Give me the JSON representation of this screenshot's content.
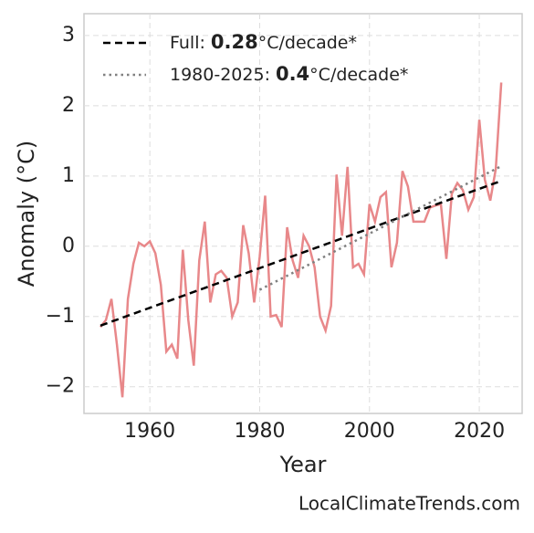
{
  "chart_data": {
    "type": "line",
    "xlabel": "Year",
    "ylabel": "Anomaly (°C)",
    "source": "LocalClimateTrends.com",
    "x": [
      1951,
      1952,
      1953,
      1954,
      1955,
      1956,
      1957,
      1958,
      1959,
      1960,
      1961,
      1962,
      1963,
      1964,
      1965,
      1966,
      1967,
      1968,
      1969,
      1970,
      1971,
      1972,
      1973,
      1974,
      1975,
      1976,
      1977,
      1978,
      1979,
      1980,
      1981,
      1982,
      1983,
      1984,
      1985,
      1986,
      1987,
      1988,
      1989,
      1990,
      1991,
      1992,
      1993,
      1994,
      1995,
      1996,
      1997,
      1998,
      1999,
      2000,
      2001,
      2002,
      2003,
      2004,
      2005,
      2006,
      2007,
      2008,
      2009,
      2010,
      2011,
      2012,
      2013,
      2014,
      2015,
      2016,
      2017,
      2018,
      2019,
      2020,
      2021,
      2022,
      2023,
      2024
    ],
    "values": [
      -1.15,
      -1.05,
      -0.75,
      -1.4,
      -2.15,
      -0.75,
      -0.25,
      0.05,
      0.0,
      0.07,
      -0.1,
      -0.55,
      -1.5,
      -1.4,
      -1.6,
      -0.05,
      -1.05,
      -1.7,
      -0.2,
      0.35,
      -0.8,
      -0.4,
      -0.35,
      -0.45,
      -1.0,
      -0.8,
      0.3,
      -0.1,
      -0.8,
      -0.15,
      0.72,
      -1.0,
      -0.98,
      -1.15,
      0.27,
      -0.2,
      -0.45,
      0.15,
      0.0,
      -0.3,
      -1.0,
      -1.2,
      -0.85,
      1.02,
      0.15,
      1.13,
      -0.3,
      -0.25,
      -0.4,
      0.6,
      0.35,
      0.7,
      0.77,
      -0.3,
      0.05,
      1.07,
      0.85,
      0.35,
      0.35,
      0.35,
      0.55,
      0.58,
      0.6,
      -0.18,
      0.75,
      0.9,
      0.8,
      0.52,
      0.7,
      1.8,
      0.95,
      0.65,
      1.1,
      2.33
    ],
    "color": "#e8888a",
    "trends": [
      {
        "name": "Full:",
        "rate": 0.28,
        "unit": "°C/decade*",
        "color": "#000000",
        "style": "dashed",
        "x": [
          1951,
          2024
        ],
        "values": [
          -1.13,
          0.93
        ]
      },
      {
        "name": "1980-2025:",
        "rate": 0.4,
        "unit": "°C/decade*",
        "color": "#808080",
        "style": "dotted",
        "x": [
          1980,
          2024
        ],
        "values": [
          -0.62,
          1.14
        ]
      }
    ],
    "xlim": [
      1948,
      2027.8
    ],
    "ylim": [
      -2.38,
      3.31
    ],
    "xticks": [
      1960,
      1980,
      2000,
      2020
    ],
    "yticks": [
      {
        "value": -2,
        "label": "−2"
      },
      {
        "value": -1,
        "label": "−1"
      },
      0,
      1,
      2,
      3
    ],
    "grid": true,
    "legend": "upper left"
  }
}
